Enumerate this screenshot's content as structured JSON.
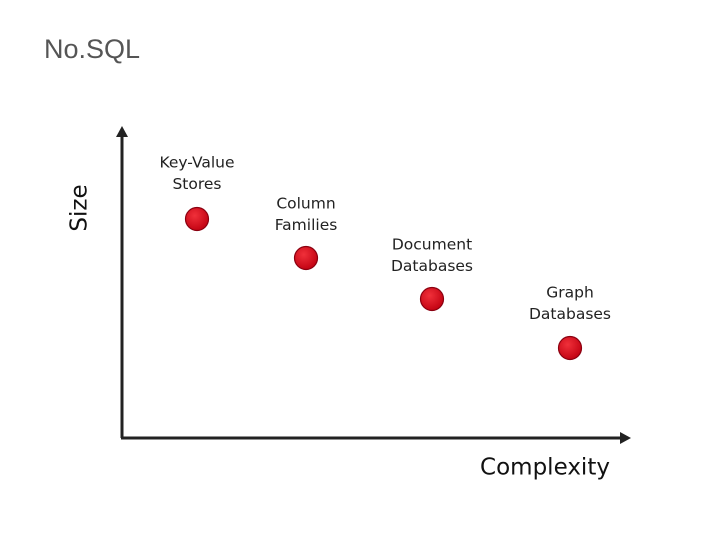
{
  "title": "No.SQL",
  "diagram": {
    "y_axis_label": "Size",
    "x_axis_label": "Complexity",
    "nodes": [
      {
        "label": [
          "Key-Value",
          "Stores"
        ]
      },
      {
        "label": [
          "Column",
          "Families"
        ]
      },
      {
        "label": [
          "Document",
          "Databases"
        ]
      },
      {
        "label": [
          "Graph",
          "Databases"
        ]
      }
    ]
  }
}
